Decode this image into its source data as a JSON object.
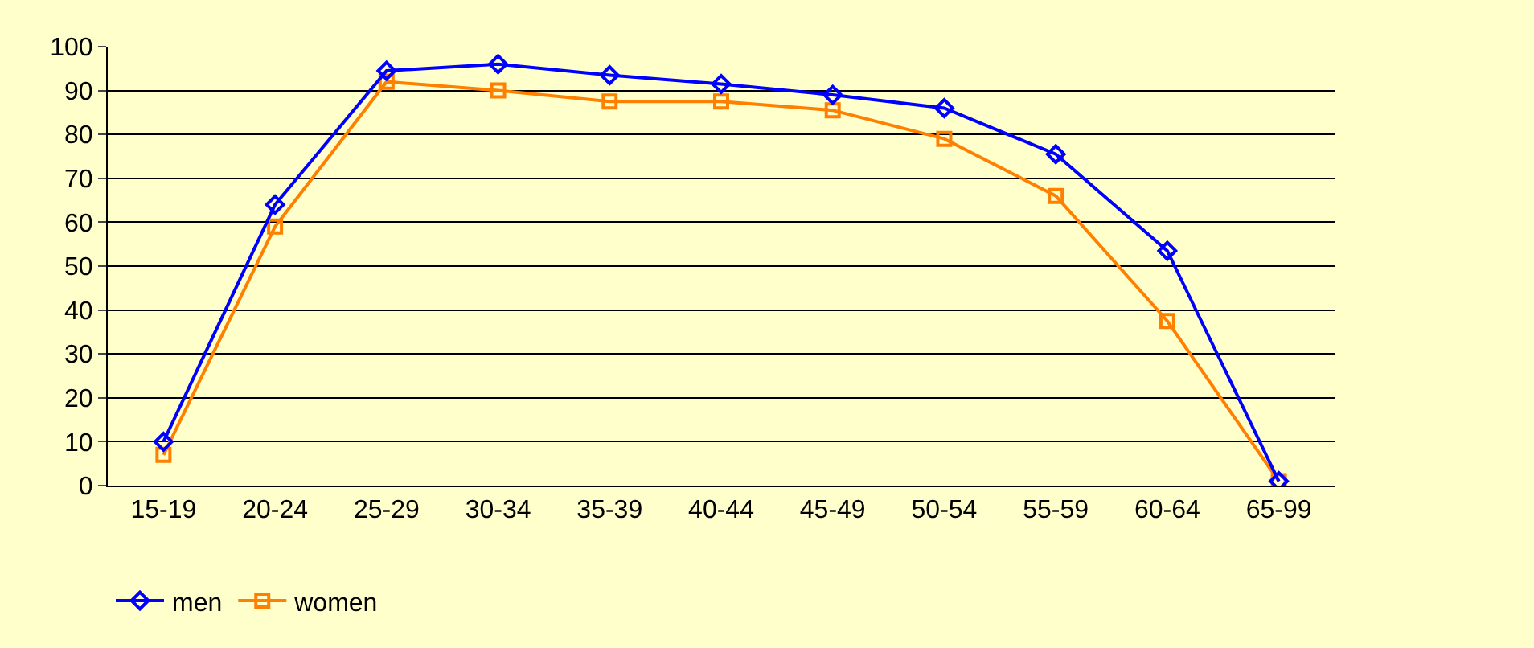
{
  "chart_data": {
    "type": "line",
    "categories": [
      "15-19",
      "20-24",
      "25-29",
      "30-34",
      "35-39",
      "40-44",
      "45-49",
      "50-54",
      "55-59",
      "60-64",
      "65-99"
    ],
    "series": [
      {
        "name": "men",
        "color": "#0000ff",
        "marker": "diamond",
        "values": [
          10,
          64,
          94.5,
          96,
          93.5,
          91.5,
          89,
          86,
          75.5,
          53.5,
          1
        ]
      },
      {
        "name": "women",
        "color": "#ff7f00",
        "marker": "square",
        "values": [
          7,
          59,
          92,
          90,
          87.5,
          87.5,
          85.5,
          79,
          66,
          37.5,
          1
        ]
      }
    ],
    "ylim": [
      0,
      100
    ],
    "yticks": [
      0,
      10,
      20,
      30,
      40,
      50,
      60,
      70,
      80,
      90,
      100
    ],
    "grid": "y",
    "legend": "bottom left",
    "line_style": "solid"
  }
}
